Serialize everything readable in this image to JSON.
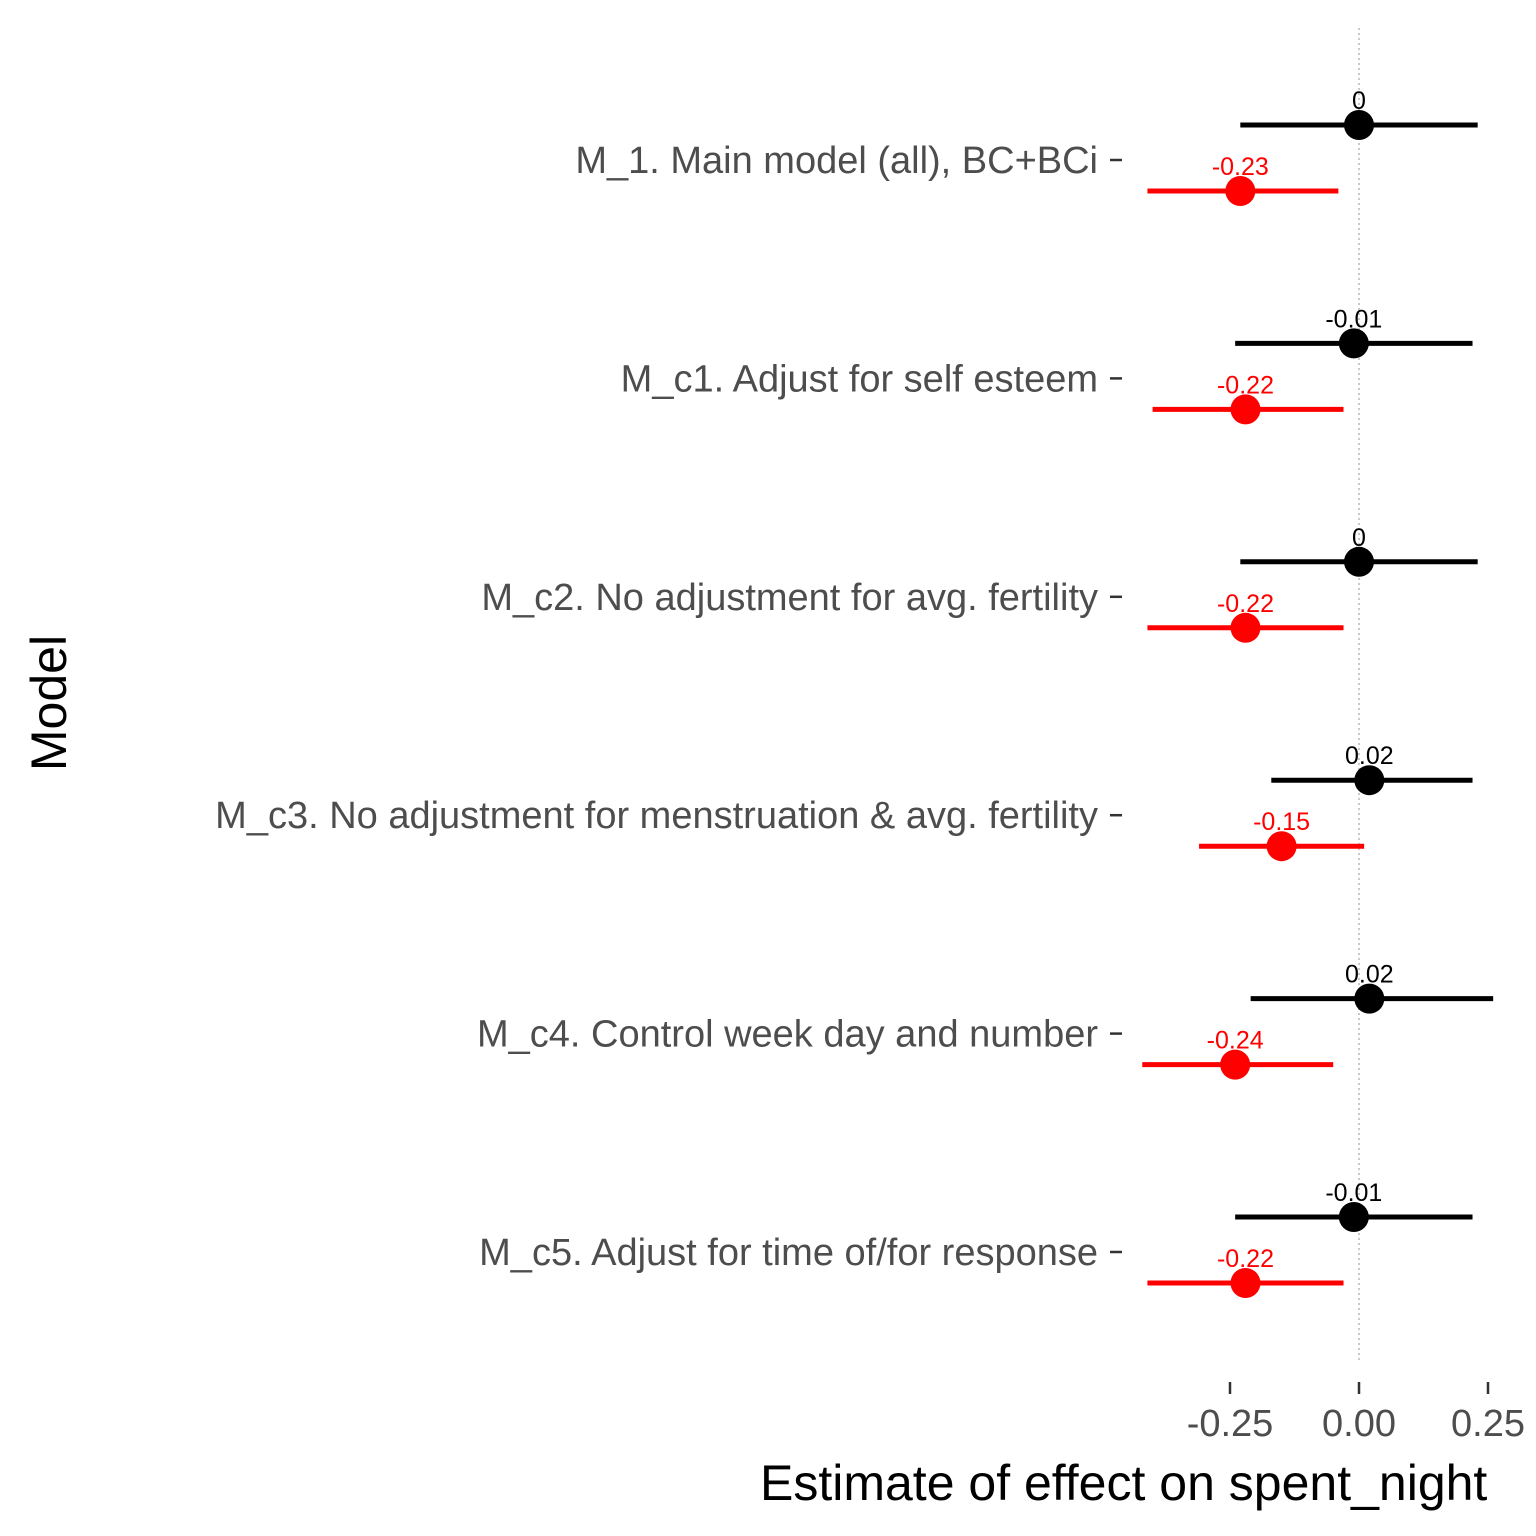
{
  "chart_data": {
    "type": "forest",
    "ylabel": "Model",
    "xlabel": "Estimate of effect on spent_night",
    "xlim": [
      -0.4,
      0.3
    ],
    "xticks": [
      -0.25,
      0.0,
      0.25
    ],
    "xtick_labels": [
      "-0.25",
      "0.00",
      "0.25"
    ],
    "reference_line": 0,
    "grid": false,
    "colors": {
      "series_a": "#000000",
      "series_b": "#ff0000"
    },
    "categories": [
      "M_1. Main model (all), BC+BCi",
      "M_c1. Adjust for self esteem",
      "M_c2. No adjustment for avg. fertility",
      "M_c3. No adjustment for menstruation & avg. fertility",
      "M_c4. Control week day and number",
      "M_c5. Adjust for time of/for response"
    ],
    "series": [
      {
        "color": "#000000",
        "estimates": [
          0.0,
          -0.01,
          0.0,
          0.02,
          0.02,
          -0.01
        ],
        "labels": [
          "0",
          "-0.01",
          "0",
          "0.02",
          "0.02",
          "-0.01"
        ],
        "lower": [
          -0.23,
          -0.24,
          -0.23,
          -0.17,
          -0.21,
          -0.24
        ],
        "upper": [
          0.23,
          0.22,
          0.23,
          0.22,
          0.26,
          0.22
        ]
      },
      {
        "color": "#ff0000",
        "estimates": [
          -0.23,
          -0.22,
          -0.22,
          -0.15,
          -0.24,
          -0.22
        ],
        "labels": [
          "-0.23",
          "-0.22",
          "-0.22",
          "-0.15",
          "-0.24",
          "-0.22"
        ],
        "lower": [
          -0.41,
          -0.4,
          -0.41,
          -0.31,
          -0.42,
          -0.41
        ],
        "upper": [
          -0.04,
          -0.03,
          -0.03,
          0.01,
          -0.05,
          -0.03
        ]
      }
    ]
  }
}
